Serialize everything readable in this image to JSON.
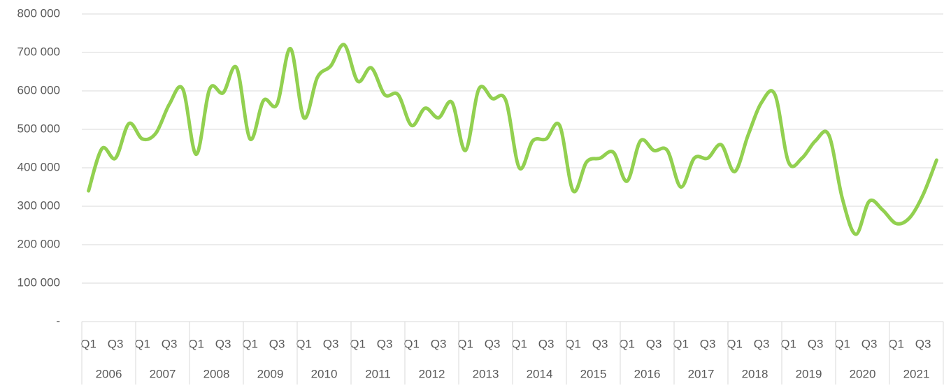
{
  "chart_data": {
    "type": "line",
    "categories": [
      "Q1",
      null,
      "Q3",
      null,
      "Q1",
      null,
      "Q3",
      null,
      "Q1",
      null,
      "Q3",
      null,
      "Q1",
      null,
      "Q3",
      null,
      "Q1",
      null,
      "Q3",
      null,
      "Q1",
      null,
      "Q3",
      null,
      "Q1",
      null,
      "Q3",
      null,
      "Q1",
      null,
      "Q3",
      null,
      "Q1",
      null,
      "Q3",
      null,
      "Q1",
      null,
      "Q3",
      null,
      "Q1",
      null,
      "Q3",
      null,
      "Q1",
      null,
      "Q3",
      null,
      "Q1",
      null,
      "Q3",
      null,
      "Q1",
      null,
      "Q3",
      null,
      "Q1",
      null,
      "Q3",
      null,
      "Q1",
      null,
      "Q3",
      null
    ],
    "year_labels": [
      "2006",
      "2007",
      "2008",
      "2009",
      "2010",
      "2011",
      "2012",
      "2013",
      "2014",
      "2015",
      "2016",
      "2017",
      "2018",
      "2019",
      "2020",
      "2021"
    ],
    "color": "#92d050",
    "values": [
      340000,
      450000,
      425000,
      515000,
      475000,
      490000,
      565000,
      605000,
      435000,
      605000,
      595000,
      660000,
      475000,
      575000,
      565000,
      710000,
      530000,
      635000,
      665000,
      720000,
      625000,
      660000,
      590000,
      590000,
      510000,
      555000,
      530000,
      570000,
      445000,
      605000,
      580000,
      575000,
      400000,
      470000,
      475000,
      510000,
      340000,
      415000,
      425000,
      440000,
      365000,
      470000,
      445000,
      445000,
      350000,
      425000,
      425000,
      460000,
      390000,
      485000,
      570000,
      590000,
      415000,
      425000,
      470000,
      485000,
      320000,
      227000,
      313000,
      290000,
      255000,
      270000,
      330000,
      420000
    ],
    "ylim": [
      0,
      800000
    ],
    "yticks": [
      {
        "value": 0,
        "label": "-"
      },
      {
        "value": 100000,
        "label": "100 000"
      },
      {
        "value": 200000,
        "label": "200 000"
      },
      {
        "value": 300000,
        "label": "300 000"
      },
      {
        "value": 400000,
        "label": "400 000"
      },
      {
        "value": 500000,
        "label": "500 000"
      },
      {
        "value": 600000,
        "label": "600 000"
      },
      {
        "value": 700000,
        "label": "700 000"
      },
      {
        "value": 800000,
        "label": "800 000"
      }
    ],
    "grid": true
  }
}
